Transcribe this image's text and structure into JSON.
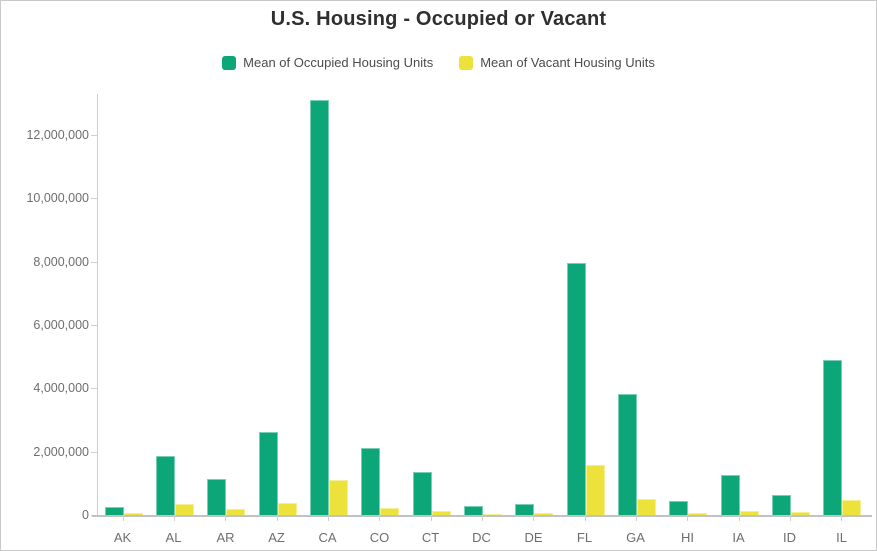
{
  "chart_data": {
    "type": "bar",
    "title": "U.S. Housing - Occupied or Vacant",
    "categories": [
      "AK",
      "AL",
      "AR",
      "AZ",
      "CA",
      "CO",
      "CT",
      "DC",
      "DE",
      "FL",
      "GA",
      "HI",
      "IA",
      "ID",
      "IL"
    ],
    "series": [
      {
        "key": "occupied",
        "name": "Mean of Occupied Housing Units",
        "color": "#0ca678",
        "values": [
          240000,
          1850000,
          1140000,
          2620000,
          13100000,
          2100000,
          1360000,
          280000,
          340000,
          7950000,
          3820000,
          450000,
          1250000,
          620000,
          4880000
        ]
      },
      {
        "key": "vacant",
        "name": "Mean of Vacant Housing Units",
        "color": "#ede23b",
        "values": [
          60000,
          350000,
          180000,
          370000,
          1100000,
          210000,
          120000,
          30000,
          60000,
          1580000,
          490000,
          60000,
          120000,
          80000,
          460000
        ]
      }
    ],
    "xlabel": "",
    "ylabel": "",
    "ylim": [
      0,
      13290000
    ],
    "yticks": [
      0,
      2000000,
      4000000,
      6000000,
      8000000,
      10000000,
      12000000
    ],
    "ytick_labels": [
      "0",
      "2,000,000",
      "4,000,000",
      "6,000,000",
      "8,000,000",
      "10,000,000",
      "12,000,000"
    ],
    "grid": false,
    "legend_position": "top"
  }
}
